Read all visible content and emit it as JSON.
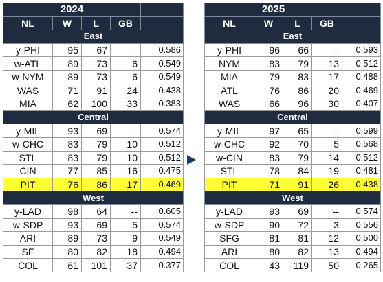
{
  "columns": [
    "NL",
    "W",
    "L",
    "GB"
  ],
  "tables": [
    {
      "year": "2024",
      "divisions": [
        {
          "name": "East",
          "teams": [
            {
              "team": "y-PHI",
              "w": "95",
              "l": "67",
              "gb": "--",
              "pct": "0.586"
            },
            {
              "team": "w-ATL",
              "w": "89",
              "l": "73",
              "gb": "6",
              "pct": "0.549"
            },
            {
              "team": "w-NYM",
              "w": "89",
              "l": "73",
              "gb": "6",
              "pct": "0.549"
            },
            {
              "team": "WAS",
              "w": "71",
              "l": "91",
              "gb": "24",
              "pct": "0.438"
            },
            {
              "team": "MIA",
              "w": "62",
              "l": "100",
              "gb": "33",
              "pct": "0.383"
            }
          ]
        },
        {
          "name": "Central",
          "teams": [
            {
              "team": "y-MIL",
              "w": "93",
              "l": "69",
              "gb": "--",
              "pct": "0.574"
            },
            {
              "team": "w-CHC",
              "w": "83",
              "l": "79",
              "gb": "10",
              "pct": "0.512"
            },
            {
              "team": "STL",
              "w": "83",
              "l": "79",
              "gb": "10",
              "pct": "0.512"
            },
            {
              "team": "CIN",
              "w": "77",
              "l": "85",
              "gb": "16",
              "pct": "0.475"
            },
            {
              "team": "PIT",
              "w": "76",
              "l": "86",
              "gb": "17",
              "pct": "0.469",
              "highlight": true
            }
          ]
        },
        {
          "name": "West",
          "teams": [
            {
              "team": "y-LAD",
              "w": "98",
              "l": "64",
              "gb": "--",
              "pct": "0.605"
            },
            {
              "team": "w-SDP",
              "w": "93",
              "l": "69",
              "gb": "5",
              "pct": "0.574"
            },
            {
              "team": "ARI",
              "w": "89",
              "l": "73",
              "gb": "9",
              "pct": "0.549"
            },
            {
              "team": "SF",
              "w": "80",
              "l": "82",
              "gb": "18",
              "pct": "0.494"
            },
            {
              "team": "COL",
              "w": "61",
              "l": "101",
              "gb": "37",
              "pct": "0.377"
            }
          ]
        }
      ]
    },
    {
      "year": "2025",
      "divisions": [
        {
          "name": "East",
          "teams": [
            {
              "team": "y-PHI",
              "w": "96",
              "l": "66",
              "gb": "--",
              "pct": "0.593"
            },
            {
              "team": "NYM",
              "w": "83",
              "l": "79",
              "gb": "13",
              "pct": "0.512"
            },
            {
              "team": "MIA",
              "w": "79",
              "l": "83",
              "gb": "17",
              "pct": "0.488"
            },
            {
              "team": "ATL",
              "w": "76",
              "l": "86",
              "gb": "20",
              "pct": "0.469"
            },
            {
              "team": "WAS",
              "w": "66",
              "l": "96",
              "gb": "30",
              "pct": "0.407"
            }
          ]
        },
        {
          "name": "Central",
          "teams": [
            {
              "team": "y-MIL",
              "w": "97",
              "l": "65",
              "gb": "--",
              "pct": "0.599"
            },
            {
              "team": "w-CHC",
              "w": "92",
              "l": "70",
              "gb": "5",
              "pct": "0.568"
            },
            {
              "team": "w-CIN",
              "w": "83",
              "l": "79",
              "gb": "14",
              "pct": "0.512"
            },
            {
              "team": "STL",
              "w": "78",
              "l": "84",
              "gb": "19",
              "pct": "0.481"
            },
            {
              "team": "PIT",
              "w": "71",
              "l": "91",
              "gb": "26",
              "pct": "0.438",
              "highlight": true
            }
          ]
        },
        {
          "name": "West",
          "teams": [
            {
              "team": "y-LAD",
              "w": "93",
              "l": "69",
              "gb": "--",
              "pct": "0.574"
            },
            {
              "team": "w-SDP",
              "w": "90",
              "l": "72",
              "gb": "3",
              "pct": "0.556"
            },
            {
              "team": "SFG",
              "w": "81",
              "l": "81",
              "gb": "12",
              "pct": "0.500"
            },
            {
              "team": "ARI",
              "w": "80",
              "l": "82",
              "gb": "13",
              "pct": "0.494"
            },
            {
              "team": "COL",
              "w": "43",
              "l": "119",
              "gb": "50",
              "pct": "0.265"
            }
          ]
        }
      ]
    }
  ],
  "colors": {
    "header_bg": "#1f2c40",
    "highlight": "#ffff33",
    "arrow": "#1f3c6e"
  },
  "icons": {
    "arrow": "right-triangle-arrow-icon"
  }
}
